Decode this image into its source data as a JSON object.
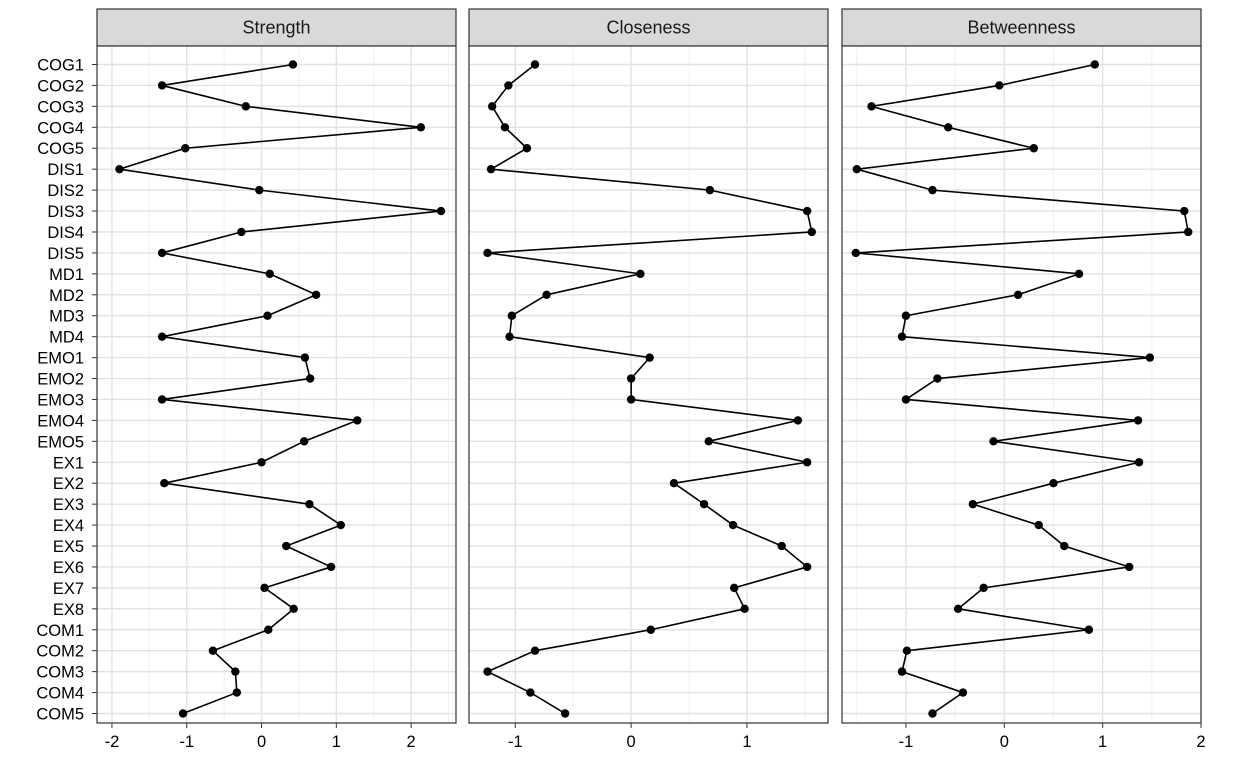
{
  "chart_data": {
    "type": "line",
    "orientation": "horizontal",
    "categories": [
      "COG1",
      "COG2",
      "COG3",
      "COG4",
      "COG5",
      "DIS1",
      "DIS2",
      "DIS3",
      "DIS4",
      "DIS5",
      "MD1",
      "MD2",
      "MD3",
      "MD4",
      "EMO1",
      "EMO2",
      "EMO3",
      "EMO4",
      "EMO5",
      "EX1",
      "EX2",
      "EX3",
      "EX4",
      "EX5",
      "EX6",
      "EX7",
      "EX8",
      "COM1",
      "COM2",
      "COM3",
      "COM4",
      "COM5"
    ],
    "grid": true,
    "facets": [
      {
        "name": "Strength",
        "xlim": [
          -2.2,
          2.6
        ],
        "xticks": [
          -2,
          -1,
          0,
          1,
          2
        ],
        "xtick_labels": [
          "-2",
          "-1",
          "0",
          "1",
          "2"
        ],
        "values": [
          0.42,
          -1.33,
          -0.21,
          2.13,
          -1.02,
          -1.9,
          -0.03,
          2.4,
          -0.27,
          -1.33,
          0.11,
          0.73,
          0.08,
          -1.33,
          0.58,
          0.65,
          -1.33,
          1.28,
          0.57,
          0.0,
          -1.3,
          0.64,
          1.06,
          0.33,
          0.93,
          0.04,
          0.43,
          0.09,
          -0.65,
          -0.35,
          -0.33,
          -1.05
        ]
      },
      {
        "name": "Closeness",
        "xlim": [
          -1.4,
          1.7
        ],
        "xticks": [
          -1,
          0,
          1
        ],
        "xtick_labels": [
          "-1",
          "0",
          "1"
        ],
        "values": [
          -0.83,
          -1.06,
          -1.2,
          -1.09,
          -0.9,
          -1.21,
          0.68,
          1.52,
          1.56,
          -1.24,
          0.08,
          -0.73,
          -1.03,
          -1.05,
          0.16,
          0.0,
          0.0,
          1.44,
          0.67,
          1.52,
          0.37,
          0.63,
          0.88,
          1.3,
          1.52,
          0.89,
          0.98,
          0.17,
          -0.83,
          -1.24,
          -0.87,
          -0.57
        ]
      },
      {
        "name": "Betweenness",
        "xlim": [
          -1.65,
          2.0
        ],
        "xticks": [
          -1,
          0,
          1,
          2
        ],
        "xtick_labels": [
          "-1",
          "0",
          "1",
          "2"
        ],
        "values": [
          0.92,
          -0.05,
          -1.35,
          -0.57,
          0.3,
          -1.5,
          -0.73,
          1.83,
          1.87,
          -1.51,
          0.76,
          0.14,
          -1.0,
          -1.04,
          1.48,
          -0.68,
          -1.0,
          1.36,
          -0.11,
          1.37,
          0.5,
          -0.32,
          0.35,
          0.61,
          1.27,
          -0.21,
          -0.47,
          0.86,
          -0.99,
          -1.04,
          -0.42,
          -0.73
        ]
      }
    ]
  }
}
